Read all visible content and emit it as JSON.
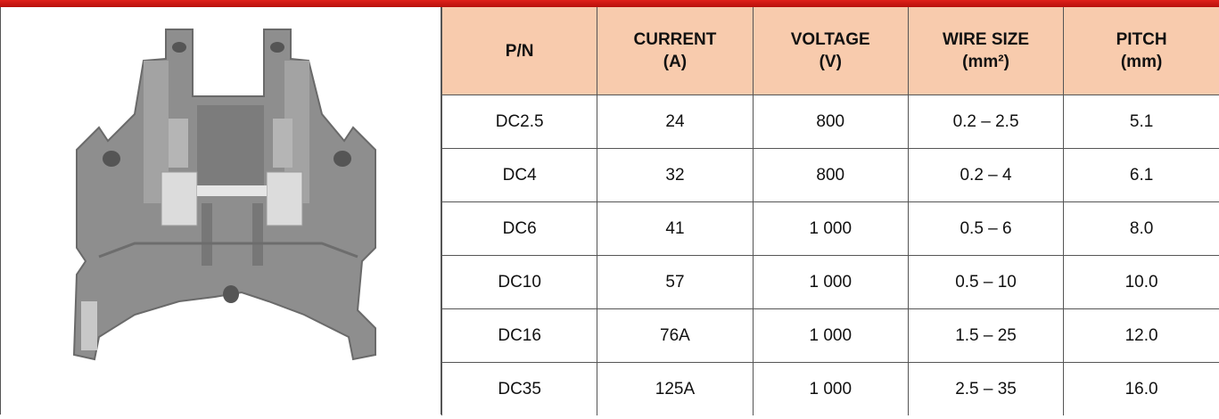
{
  "table": {
    "header": [
      [
        "P/N"
      ],
      [
        "CURRENT",
        "(A)"
      ],
      [
        "VOLTAGE",
        "(V)"
      ],
      [
        "WIRE SIZE",
        "(mm²)"
      ],
      [
        "PITCH",
        "(mm)"
      ]
    ],
    "rows": [
      [
        "DC2.5",
        "24",
        "800",
        "0.2 – 2.5",
        "5.1"
      ],
      [
        "DC4",
        "32",
        "800",
        "0.2 – 4",
        "6.1"
      ],
      [
        "DC6",
        "41",
        "1 000",
        "0.5 – 6",
        "8.0"
      ],
      [
        "DC10",
        "57",
        "1 000",
        "0.5 – 10",
        "10.0"
      ],
      [
        "DC16",
        "76A",
        "1 000",
        "1.5 – 25",
        "12.0"
      ],
      [
        "DC35",
        "125A",
        "1 000",
        "2.5 – 35",
        "16.0"
      ]
    ]
  }
}
